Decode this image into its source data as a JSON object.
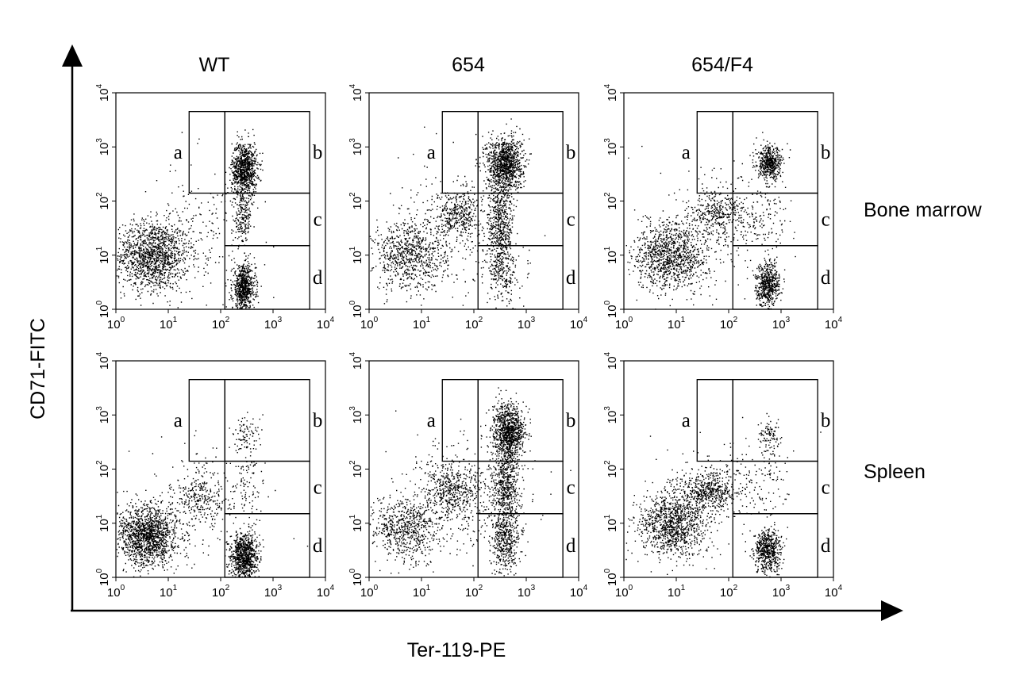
{
  "figure": {
    "x_axis_title": "Ter-119-PE",
    "y_axis_title": "CD71-FITC",
    "columns": [
      "WT",
      "654",
      "654/F4"
    ],
    "rows": [
      "Bone marrow",
      "Spleen"
    ],
    "gate_letters": [
      "a",
      "b",
      "c",
      "d"
    ],
    "tick_base": "10",
    "tick_exponents": [
      "0",
      "1",
      "2",
      "3",
      "4"
    ]
  },
  "chart_data": {
    "type": "scatter",
    "xlabel": "Ter-119-PE",
    "ylabel": "CD71-FITC",
    "xscale": "log",
    "yscale": "log",
    "xlim": [
      1,
      10000
    ],
    "ylim": [
      1,
      10000
    ],
    "gates": {
      "a": {
        "x": [
          25,
          120
        ],
        "y": [
          140,
          4500
        ]
      },
      "b": {
        "x": [
          120,
          5000
        ],
        "y": [
          140,
          4500
        ]
      },
      "c": {
        "x": [
          120,
          5000
        ],
        "y": [
          15,
          140
        ]
      },
      "d": {
        "x": [
          120,
          5000
        ],
        "y": [
          1,
          15
        ]
      }
    },
    "panels": [
      {
        "column": "WT",
        "row": "Bone marrow",
        "populations": [
          {
            "x": 5,
            "y": 10,
            "sx": 0.35,
            "sy": 0.32,
            "n": 1400
          },
          {
            "x": 280,
            "y": 400,
            "sx": 0.12,
            "sy": 0.25,
            "n": 900
          },
          {
            "x": 270,
            "y": 2.5,
            "sx": 0.11,
            "sy": 0.2,
            "n": 700
          },
          {
            "x": 260,
            "y": 50,
            "sx": 0.08,
            "sy": 0.25,
            "n": 180
          },
          {
            "x": 50,
            "y": 30,
            "sx": 0.5,
            "sy": 0.6,
            "n": 200
          }
        ]
      },
      {
        "column": "654",
        "row": "Bone marrow",
        "populations": [
          {
            "x": 6,
            "y": 10,
            "sx": 0.35,
            "sy": 0.32,
            "n": 800
          },
          {
            "x": 50,
            "y": 60,
            "sx": 0.2,
            "sy": 0.2,
            "n": 350
          },
          {
            "x": 380,
            "y": 500,
            "sx": 0.17,
            "sy": 0.25,
            "n": 1100
          },
          {
            "x": 320,
            "y": 40,
            "sx": 0.12,
            "sy": 0.4,
            "n": 500
          },
          {
            "x": 350,
            "y": 5,
            "sx": 0.15,
            "sy": 0.3,
            "n": 250
          },
          {
            "x": 60,
            "y": 30,
            "sx": 0.6,
            "sy": 0.6,
            "n": 250
          }
        ]
      },
      {
        "column": "654/F4",
        "row": "Bone marrow",
        "populations": [
          {
            "x": 8,
            "y": 10,
            "sx": 0.35,
            "sy": 0.32,
            "n": 1100
          },
          {
            "x": 60,
            "y": 60,
            "sx": 0.25,
            "sy": 0.2,
            "n": 300
          },
          {
            "x": 600,
            "y": 500,
            "sx": 0.12,
            "sy": 0.15,
            "n": 500
          },
          {
            "x": 550,
            "y": 3,
            "sx": 0.11,
            "sy": 0.2,
            "n": 550
          },
          {
            "x": 400,
            "y": 50,
            "sx": 0.25,
            "sy": 0.4,
            "n": 150
          },
          {
            "x": 60,
            "y": 40,
            "sx": 0.6,
            "sy": 0.6,
            "n": 200
          }
        ]
      },
      {
        "column": "WT",
        "row": "Spleen",
        "populations": [
          {
            "x": 4,
            "y": 6,
            "sx": 0.3,
            "sy": 0.28,
            "n": 1500
          },
          {
            "x": 40,
            "y": 30,
            "sx": 0.25,
            "sy": 0.22,
            "n": 250
          },
          {
            "x": 280,
            "y": 2.5,
            "sx": 0.13,
            "sy": 0.22,
            "n": 900
          },
          {
            "x": 300,
            "y": 400,
            "sx": 0.12,
            "sy": 0.2,
            "n": 80
          },
          {
            "x": 300,
            "y": 60,
            "sx": 0.15,
            "sy": 0.4,
            "n": 80
          },
          {
            "x": 60,
            "y": 30,
            "sx": 0.6,
            "sy": 0.6,
            "n": 150
          }
        ]
      },
      {
        "column": "654",
        "row": "Spleen",
        "populations": [
          {
            "x": 5,
            "y": 8,
            "sx": 0.35,
            "sy": 0.3,
            "n": 700
          },
          {
            "x": 40,
            "y": 40,
            "sx": 0.3,
            "sy": 0.25,
            "n": 500
          },
          {
            "x": 450,
            "y": 500,
            "sx": 0.15,
            "sy": 0.25,
            "n": 1000
          },
          {
            "x": 400,
            "y": 50,
            "sx": 0.13,
            "sy": 0.35,
            "n": 550
          },
          {
            "x": 400,
            "y": 5,
            "sx": 0.15,
            "sy": 0.3,
            "n": 450
          },
          {
            "x": 60,
            "y": 30,
            "sx": 0.6,
            "sy": 0.6,
            "n": 250
          }
        ]
      },
      {
        "column": "654/F4",
        "row": "Spleen",
        "populations": [
          {
            "x": 8,
            "y": 10,
            "sx": 0.32,
            "sy": 0.3,
            "n": 1100
          },
          {
            "x": 40,
            "y": 40,
            "sx": 0.25,
            "sy": 0.2,
            "n": 500
          },
          {
            "x": 550,
            "y": 3,
            "sx": 0.13,
            "sy": 0.2,
            "n": 550
          },
          {
            "x": 600,
            "y": 450,
            "sx": 0.1,
            "sy": 0.15,
            "n": 90
          },
          {
            "x": 400,
            "y": 60,
            "sx": 0.25,
            "sy": 0.4,
            "n": 100
          },
          {
            "x": 60,
            "y": 40,
            "sx": 0.6,
            "sy": 0.6,
            "n": 150
          }
        ]
      }
    ]
  }
}
